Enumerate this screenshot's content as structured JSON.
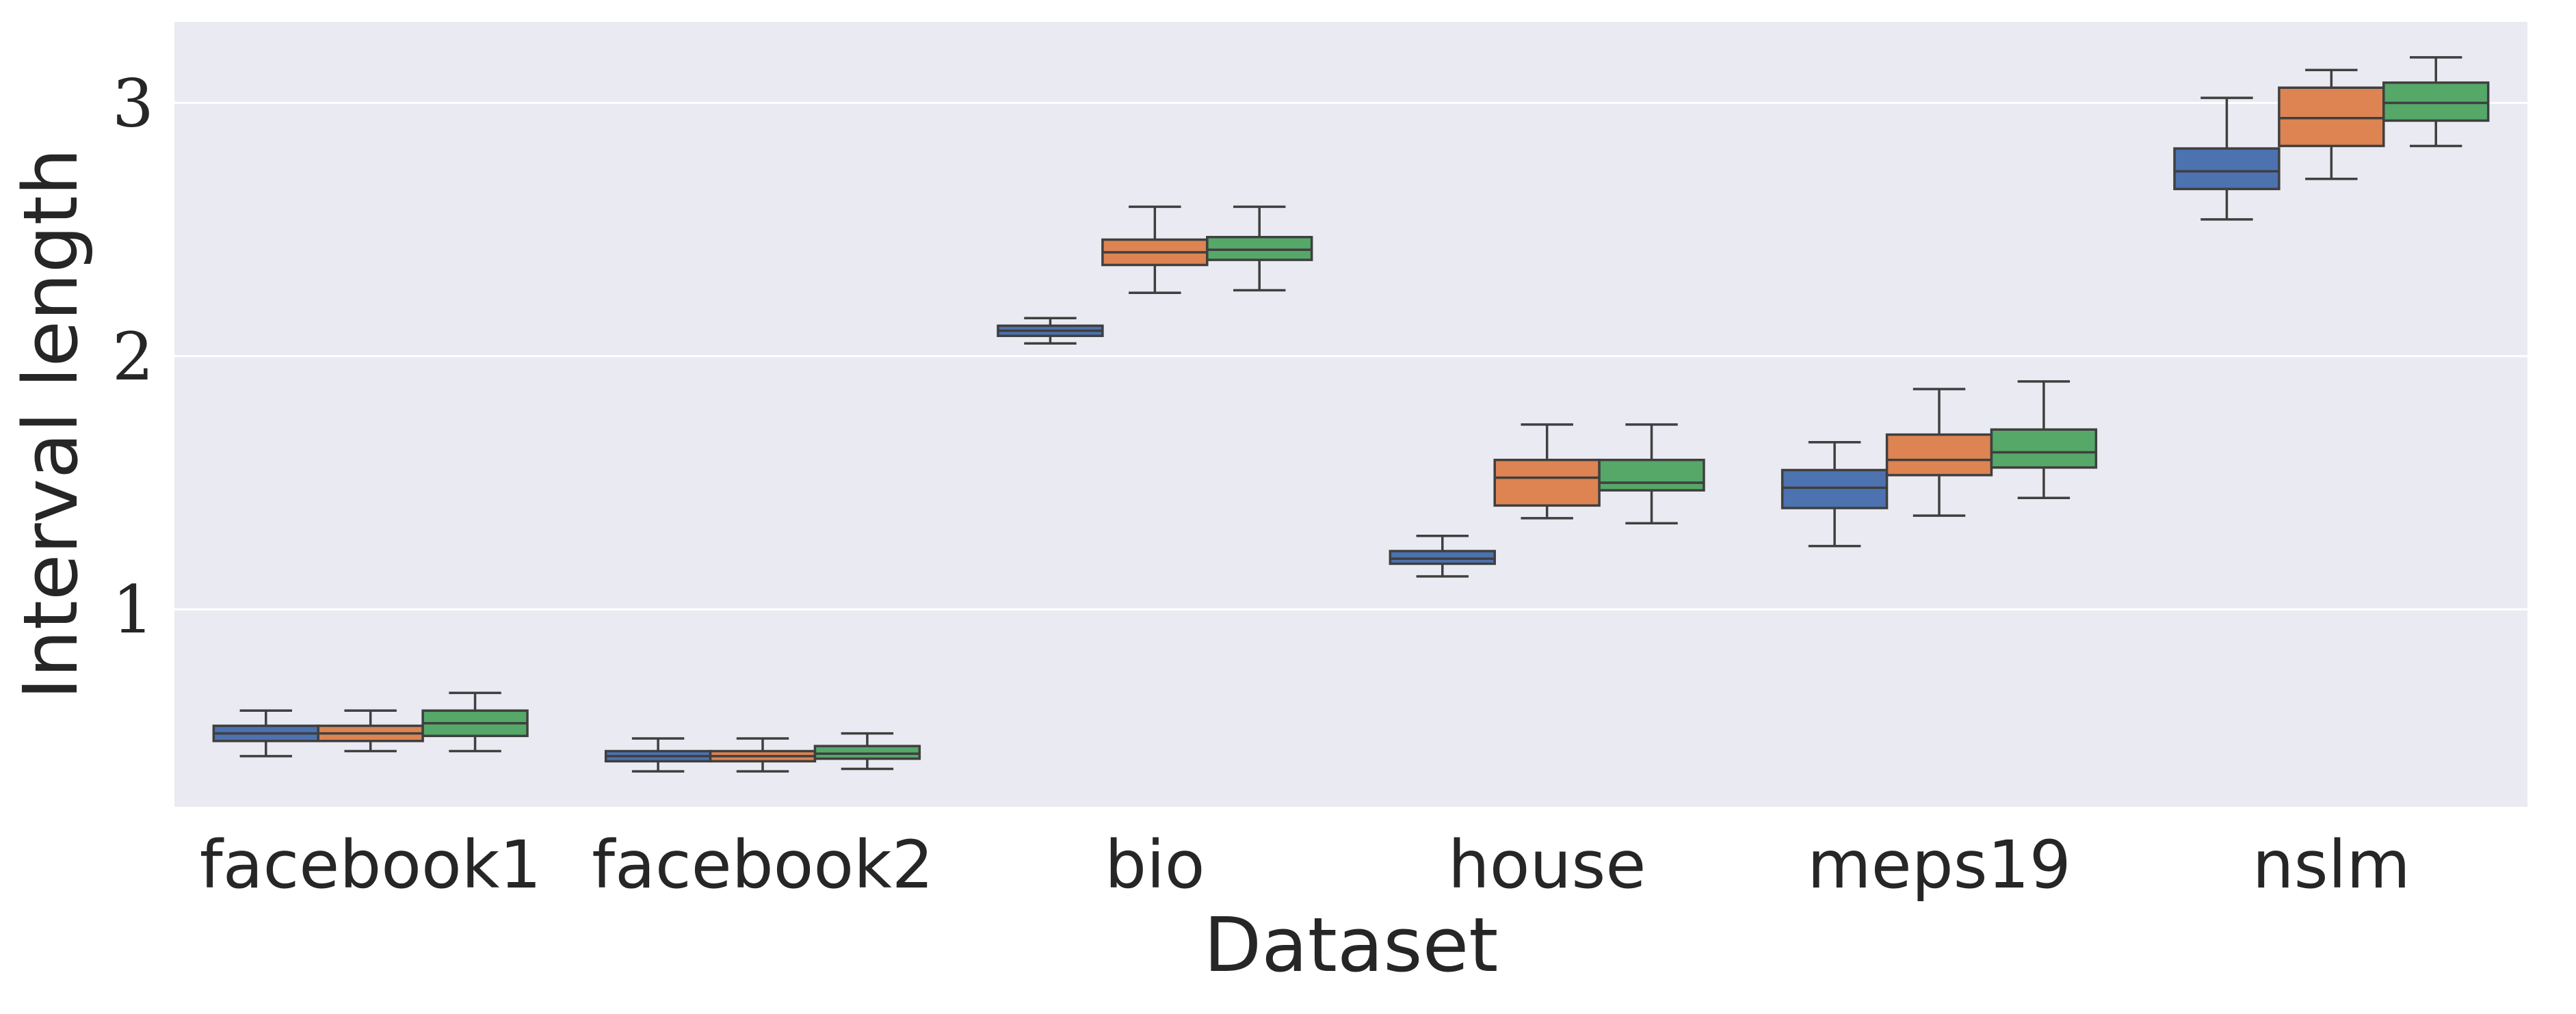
{
  "chart_data": {
    "type": "box",
    "title": "",
    "xlabel": "Dataset",
    "ylabel": "Interval length",
    "categories": [
      "facebook1",
      "facebook2",
      "bio",
      "house",
      "meps19",
      "nslm"
    ],
    "yticks": [
      "1",
      "2",
      "3"
    ],
    "ylim": [
      0.22,
      3.32
    ],
    "grid": true,
    "legend": "none",
    "series": [
      {
        "color": "#4c72b0",
        "boxes": [
          {
            "whisker_low": 0.42,
            "q1": 0.48,
            "median": 0.51,
            "q3": 0.54,
            "whisker_high": 0.6
          },
          {
            "whisker_low": 0.36,
            "q1": 0.4,
            "median": 0.42,
            "q3": 0.44,
            "whisker_high": 0.49
          },
          {
            "whisker_low": 2.05,
            "q1": 2.08,
            "median": 2.1,
            "q3": 2.12,
            "whisker_high": 2.15
          },
          {
            "whisker_low": 1.13,
            "q1": 1.18,
            "median": 1.2,
            "q3": 1.23,
            "whisker_high": 1.29
          },
          {
            "whisker_low": 1.25,
            "q1": 1.4,
            "median": 1.48,
            "q3": 1.55,
            "whisker_high": 1.66
          },
          {
            "whisker_low": 2.54,
            "q1": 2.66,
            "median": 2.73,
            "q3": 2.82,
            "whisker_high": 3.02
          }
        ]
      },
      {
        "color": "#dd8452",
        "boxes": [
          {
            "whisker_low": 0.44,
            "q1": 0.48,
            "median": 0.51,
            "q3": 0.54,
            "whisker_high": 0.6
          },
          {
            "whisker_low": 0.36,
            "q1": 0.4,
            "median": 0.42,
            "q3": 0.44,
            "whisker_high": 0.49
          },
          {
            "whisker_low": 2.25,
            "q1": 2.36,
            "median": 2.41,
            "q3": 2.46,
            "whisker_high": 2.59
          },
          {
            "whisker_low": 1.36,
            "q1": 1.41,
            "median": 1.52,
            "q3": 1.59,
            "whisker_high": 1.73
          },
          {
            "whisker_low": 1.37,
            "q1": 1.53,
            "median": 1.59,
            "q3": 1.69,
            "whisker_high": 1.87
          },
          {
            "whisker_low": 2.7,
            "q1": 2.83,
            "median": 2.94,
            "q3": 3.06,
            "whisker_high": 3.13
          }
        ]
      },
      {
        "color": "#55a868",
        "boxes": [
          {
            "whisker_low": 0.44,
            "q1": 0.5,
            "median": 0.55,
            "q3": 0.6,
            "whisker_high": 0.67
          },
          {
            "whisker_low": 0.37,
            "q1": 0.41,
            "median": 0.43,
            "q3": 0.46,
            "whisker_high": 0.51
          },
          {
            "whisker_low": 2.26,
            "q1": 2.38,
            "median": 2.42,
            "q3": 2.47,
            "whisker_high": 2.59
          },
          {
            "whisker_low": 1.34,
            "q1": 1.47,
            "median": 1.5,
            "q3": 1.59,
            "whisker_high": 1.73
          },
          {
            "whisker_low": 1.44,
            "q1": 1.56,
            "median": 1.62,
            "q3": 1.71,
            "whisker_high": 1.9
          },
          {
            "whisker_low": 2.83,
            "q1": 2.93,
            "median": 3.0,
            "q3": 3.08,
            "whisker_high": 3.18
          }
        ]
      }
    ],
    "colors": {
      "plot_background": "#eaeaf2",
      "grid": "#ffffff",
      "box_edge": "#3f3f3f",
      "text": "#262626"
    }
  }
}
